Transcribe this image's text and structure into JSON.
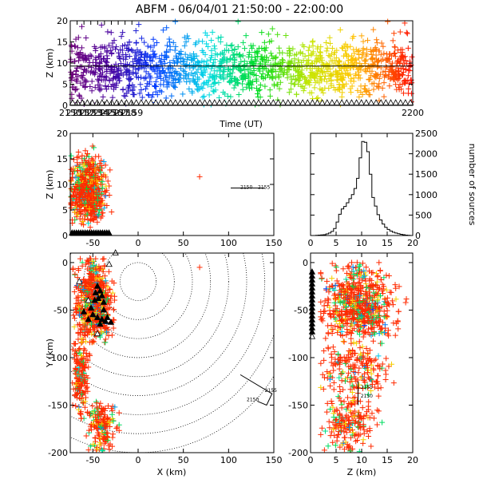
{
  "figure": {
    "title": "ABFM - 06/04/01 21:50:00 - 22:00:00"
  },
  "chart_data": [
    {
      "type": "scatter",
      "name": "height-time",
      "xlabel": "Time (UT)",
      "ylabel": "Z (km)",
      "xlim": [
        2150,
        2200
      ],
      "ylim": [
        0,
        20
      ],
      "x_ticks": [
        "2150",
        "2151",
        "2152",
        "2153",
        "2154",
        "2155",
        "2156",
        "2157",
        "2158",
        "2159",
        "2200"
      ],
      "y_ticks": [
        "0",
        "5",
        "10",
        "15",
        "20"
      ],
      "reference_line_z": 9.3,
      "color_scale": "time: purple (2150) -> red (2200)",
      "marker": "+",
      "station_marker": "triangle"
    },
    {
      "type": "scatter",
      "name": "x-z-projection",
      "xlabel": "",
      "ylabel": "Z (km)",
      "xlim": [
        -75,
        150
      ],
      "ylim": [
        0,
        20
      ],
      "x_ticks": [
        "-50",
        "0",
        "50",
        "100",
        "150"
      ],
      "y_ticks": [
        "0",
        "5",
        "10",
        "15",
        "20"
      ],
      "cluster": {
        "x_range": [
          -70,
          -30
        ],
        "z_range": [
          1,
          17
        ],
        "peak_z": 9
      },
      "outlier": {
        "x": 68,
        "z": 11.5
      },
      "track": {
        "x": [
          120,
          140
        ],
        "z": [
          9.3,
          9.3
        ],
        "labels": [
          "2150",
          "2155"
        ]
      }
    },
    {
      "type": "bar",
      "name": "height-histogram",
      "xlabel": "",
      "ylabel": "number of sources",
      "xlim": [
        0,
        20
      ],
      "ylim": [
        0,
        2500
      ],
      "x_ticks": [
        "0",
        "5",
        "10",
        "15",
        "20"
      ],
      "y_ticks": [
        "0",
        "500",
        "1000",
        "1500",
        "2000",
        "2500"
      ],
      "bin_width": 0.5,
      "values": [
        0,
        0,
        5,
        10,
        15,
        20,
        40,
        60,
        100,
        170,
        330,
        520,
        650,
        710,
        800,
        900,
        1000,
        1150,
        1400,
        1900,
        2300,
        2280,
        2050,
        1500,
        930,
        720,
        510,
        380,
        280,
        200,
        150,
        110,
        80,
        60,
        45,
        30,
        20,
        10,
        5,
        0
      ]
    },
    {
      "type": "scatter",
      "name": "plan-view",
      "xlabel": "X (km)",
      "ylabel": "Y (km)",
      "xlim": [
        -75,
        150
      ],
      "ylim": [
        -200,
        10
      ],
      "x_ticks": [
        "-50",
        "0",
        "50",
        "100",
        "150"
      ],
      "y_ticks": [
        "-200",
        "-150",
        "-100",
        "-50",
        "0"
      ],
      "range_rings_center": {
        "x": 0,
        "y": -20
      },
      "range_rings_km": [
        20,
        40,
        60,
        80,
        100,
        120,
        140,
        160,
        180
      ],
      "track_labels": [
        "2155",
        "2150"
      ],
      "clusters": [
        {
          "x_range": [
            -68,
            -30
          ],
          "y_range": [
            -80,
            0
          ]
        },
        {
          "x_range": [
            -72,
            -55
          ],
          "y_range": [
            -160,
            -80
          ]
        },
        {
          "x_range": [
            -55,
            -25
          ],
          "y_range": [
            -195,
            -150
          ]
        }
      ]
    },
    {
      "type": "scatter",
      "name": "z-y-projection",
      "xlabel": "Z (km)",
      "ylabel": "",
      "xlim": [
        0,
        20
      ],
      "ylim": [
        -200,
        10
      ],
      "x_ticks": [
        "0",
        "5",
        "10",
        "15",
        "20"
      ],
      "y_ticks": [
        "-200",
        "-150",
        "-100",
        "-50",
        "0"
      ],
      "track_labels": [
        "2155",
        "2150"
      ],
      "clusters": [
        {
          "z_range": [
            3,
            18
          ],
          "y_range": [
            -80,
            -5
          ]
        },
        {
          "z_range": [
            3,
            17
          ],
          "y_range": [
            -140,
            -85
          ]
        },
        {
          "z_range": [
            3,
            14
          ],
          "y_range": [
            -195,
            -145
          ]
        }
      ]
    }
  ]
}
